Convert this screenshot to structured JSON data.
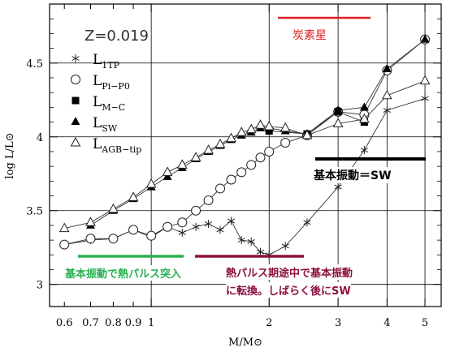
{
  "chart_data": {
    "type": "line",
    "xlabel": "M/M⊙",
    "ylabel": "log L/L⊙",
    "x_scale": "log",
    "xlim": [
      0.55,
      5.5
    ],
    "ylim": [
      2.85,
      4.9
    ],
    "x_ticks": [
      0.6,
      0.7,
      0.8,
      0.9,
      1,
      2,
      3,
      4,
      5
    ],
    "x_tick_labels": [
      "0.6",
      "0.7",
      "0.8",
      "0.9",
      "1",
      "2",
      "3",
      "4",
      "5"
    ],
    "y_ticks": [
      3,
      3.5,
      4,
      4.5
    ],
    "y_tick_labels": [
      "3",
      "3.5",
      "4",
      "4.5"
    ],
    "grid": true,
    "legend_title": "Z=0.019",
    "legend_position": "top-left",
    "series": [
      {
        "name": "L1TP",
        "legend_main": "L",
        "legend_sub": "1TP",
        "marker": "star",
        "x": [
          0.6,
          0.7,
          0.8,
          0.9,
          1.0,
          1.1,
          1.2,
          1.3,
          1.4,
          1.5,
          1.6,
          1.7,
          1.8,
          1.9,
          2.0,
          2.2,
          2.5,
          3.0,
          3.5,
          4.0,
          5.0
        ],
        "y": [
          3.27,
          3.3,
          3.31,
          3.37,
          3.32,
          3.39,
          3.35,
          3.39,
          3.41,
          3.37,
          3.43,
          3.3,
          3.29,
          3.22,
          3.2,
          3.26,
          3.42,
          3.66,
          3.91,
          4.18,
          4.26
        ]
      },
      {
        "name": "LPi-P0",
        "legend_main": "L",
        "legend_sub": "Pi−P0",
        "marker": "circle",
        "x": [
          0.6,
          0.7,
          0.8,
          0.9,
          1.0,
          1.1,
          1.2,
          1.3,
          1.4,
          1.5,
          1.6,
          1.7,
          1.8,
          1.9,
          2.0,
          2.2,
          2.5,
          3.0,
          3.5,
          4.0,
          5.0
        ],
        "y": [
          3.27,
          3.31,
          3.31,
          3.37,
          3.33,
          3.39,
          3.42,
          3.5,
          3.57,
          3.65,
          3.71,
          3.76,
          3.81,
          3.86,
          3.9,
          3.96,
          4.01,
          4.17,
          4.15,
          4.45,
          4.66
        ]
      },
      {
        "name": "LM-C",
        "legend_main": "L",
        "legend_sub": "M−C",
        "marker": "square",
        "x": [
          2.0,
          2.5,
          3.0,
          3.5
        ],
        "y": [
          4.04,
          4.02,
          4.17,
          4.1
        ]
      },
      {
        "name": "LSW",
        "legend_main": "L",
        "legend_sub": "SW",
        "marker": "triangle-filled",
        "x": [
          0.7,
          0.8,
          0.9,
          1.0,
          1.1,
          1.2,
          1.3,
          1.4,
          1.5,
          1.6,
          1.7,
          1.8,
          1.9,
          2.0,
          2.2,
          2.5,
          3.0,
          3.5,
          4.0,
          5.0
        ],
        "y": [
          3.4,
          3.5,
          3.58,
          3.66,
          3.73,
          3.79,
          3.85,
          3.9,
          3.94,
          3.98,
          4.01,
          4.03,
          4.06,
          4.06,
          4.04,
          4.02,
          4.18,
          4.2,
          4.46,
          4.66
        ]
      },
      {
        "name": "LAGB-tip",
        "legend_main": "L",
        "legend_sub": "AGB−tip",
        "marker": "triangle-open",
        "x": [
          0.6,
          0.7,
          0.8,
          0.9,
          1.0,
          1.1,
          1.2,
          1.3,
          1.4,
          1.5,
          1.6,
          1.7,
          1.8,
          1.9,
          2.0,
          2.2,
          2.5,
          3.0,
          3.5,
          4.0,
          5.0
        ],
        "y": [
          3.38,
          3.42,
          3.51,
          3.59,
          3.68,
          3.76,
          3.81,
          3.86,
          3.91,
          3.95,
          3.99,
          4.03,
          4.05,
          4.08,
          4.07,
          4.06,
          4.01,
          4.09,
          4.12,
          4.28,
          4.38
        ]
      }
    ]
  },
  "annotations": {
    "carbon_star": "炭素星",
    "fundamental_sw": "基本振動＝SW",
    "tp_start": "基本振動で熱パルス突入",
    "midway_line1": "熱パルス期途中で基本振動",
    "midway_line2": "に転換。しばらく後にSW",
    "colors": {
      "red": "#e02020",
      "black": "#000000",
      "green": "#28b050",
      "maroon": "#8c1040"
    }
  }
}
